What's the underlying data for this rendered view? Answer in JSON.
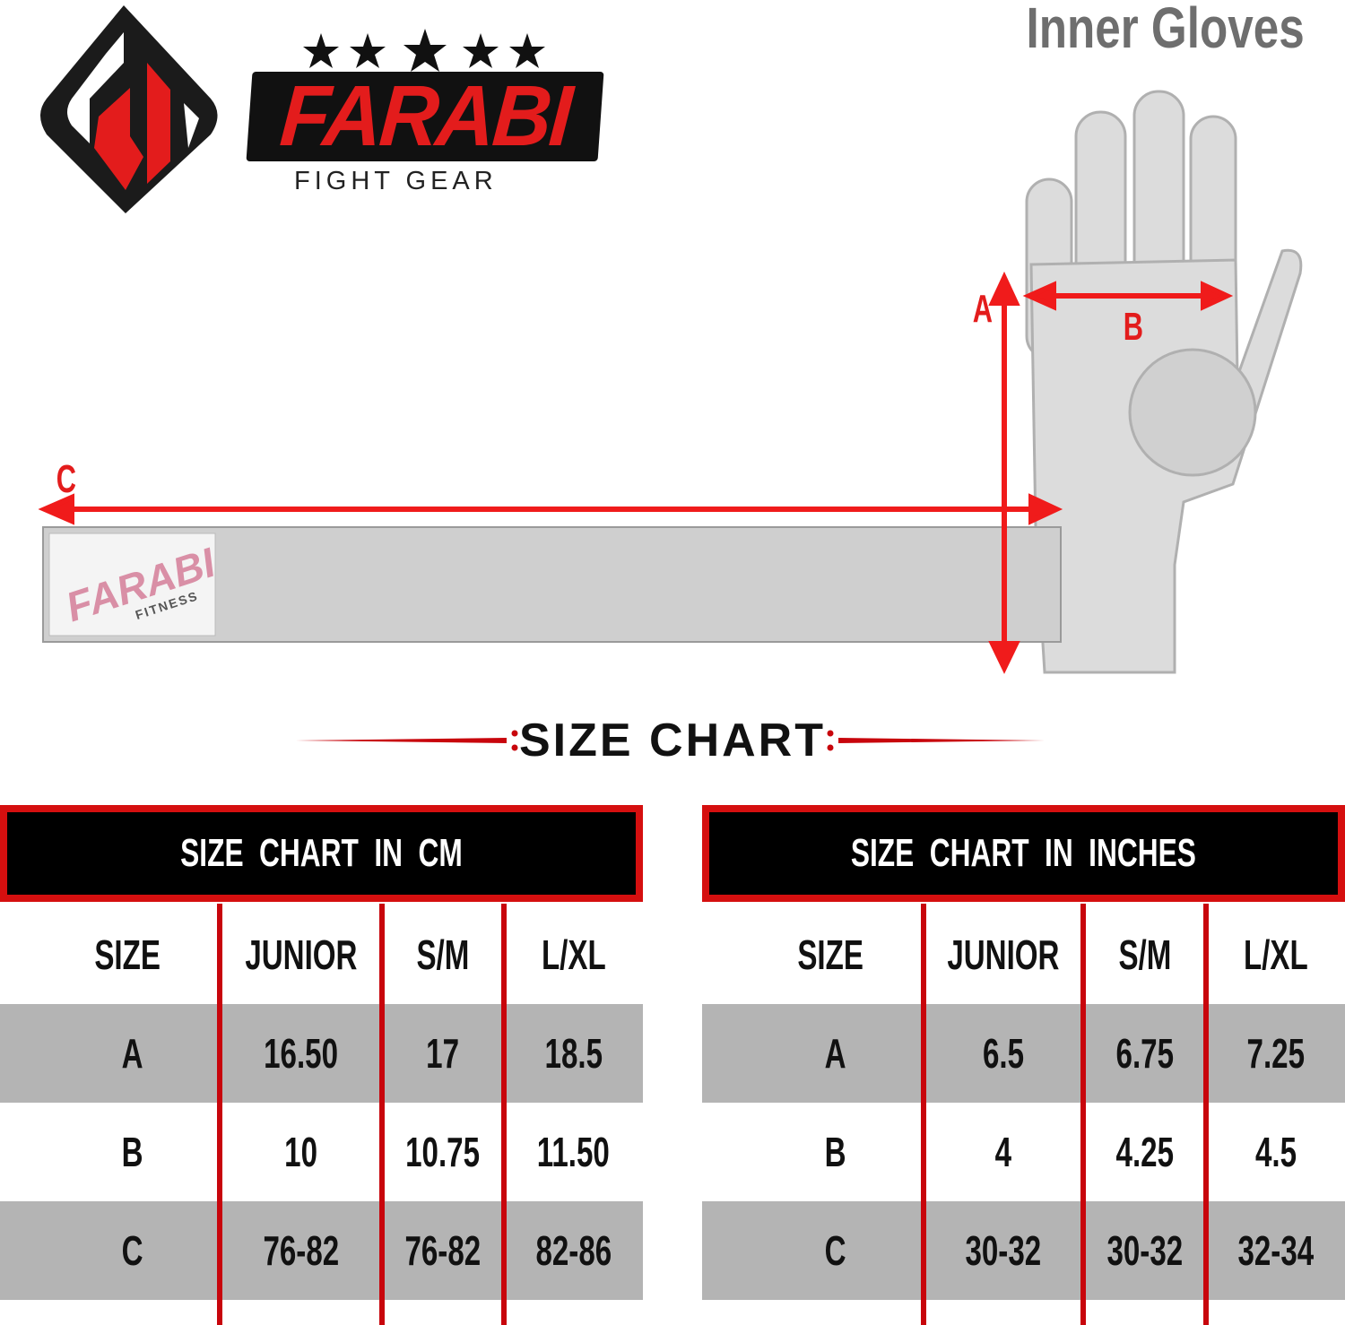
{
  "header": {
    "product_title": "Inner Gloves"
  },
  "brand": {
    "name": "FARABI",
    "tagline": "FIGHT GEAR",
    "stars": 5,
    "strap_logo_text": "FARABI",
    "strap_logo_sub": "FITNESS"
  },
  "diagram": {
    "labels": {
      "a": "A",
      "b": "B",
      "c": "C"
    }
  },
  "size_chart": {
    "title": "SIZE CHART",
    "tables": [
      {
        "heading": "SIZE CHART IN CM",
        "columns": [
          "SIZE",
          "JUNIOR",
          "S/M",
          "L/XL"
        ],
        "rows": [
          [
            "A",
            "16.50",
            "17",
            "18.5"
          ],
          [
            "B",
            "10",
            "10.75",
            "11.50"
          ],
          [
            "C",
            "76-82",
            "76-82",
            "82-86"
          ]
        ]
      },
      {
        "heading": "SIZE CHART IN INCHES",
        "columns": [
          "SIZE",
          "JUNIOR",
          "S/M",
          "L/XL"
        ],
        "rows": [
          [
            "A",
            "6.5",
            "6.75",
            "7.25"
          ],
          [
            "B",
            "4",
            "4.25",
            "4.5"
          ],
          [
            "C",
            "30-32",
            "30-32",
            "32-34"
          ]
        ]
      }
    ]
  },
  "colors": {
    "accent": "#e31c1c",
    "header_bg": "#000000",
    "row_gray": "#b4b4b4"
  }
}
